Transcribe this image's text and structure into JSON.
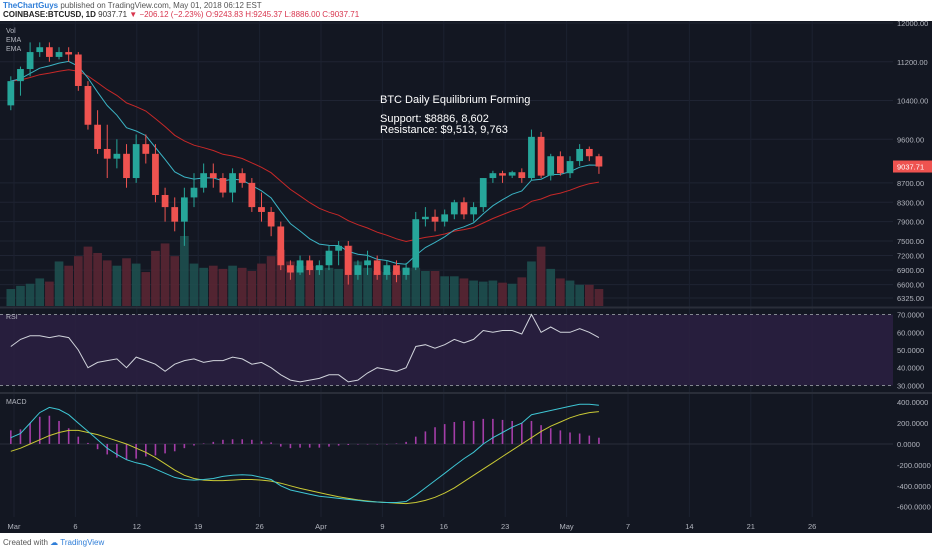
{
  "header": {
    "author": "TheChartGuys",
    "published_text": "published on TradingView.com, May 01, 2018 06:12 EST",
    "symbol": "COINBASE:BTCUSD, 1D",
    "last": "9037.71",
    "change": "▼ −206.12 (−2.23%)",
    "ohlc_line": "O:9243.83 H:9245.37 L:8886.00 C:9037.71"
  },
  "footer": {
    "created_with": "Created with",
    "brand": "TradingView"
  },
  "colors": {
    "background": "#131722",
    "up": "#26a69a",
    "down": "#ef5350",
    "ema_fast": "#3bb3c4",
    "ema_slow": "#c62828",
    "rsi_line": "#d1d4dc",
    "rsi_band": "#2b2042",
    "macd_line": "#3ec6d4",
    "signal_line": "#c9c935",
    "hist": "#a43da8",
    "last_price_tag": "#ef5350"
  },
  "chart_data": [
    {
      "type": "candlestick",
      "panel": "price",
      "legend": [
        "Vol",
        "EMA",
        "EMA"
      ],
      "annotation": {
        "title": "BTC Daily Equilibrium Forming",
        "line1": "Support: $8886, 8,602",
        "line2": "Resistance: $9,513, 9,763"
      },
      "last_price_label": "9037.71",
      "y_ticks": [
        "12000.00",
        "11200.00",
        "10400.00",
        "9600.00",
        "8700.00",
        "8300.00",
        "7900.00",
        "7500.00",
        "7200.00",
        "6900.00",
        "6600.00",
        "6325.00"
      ],
      "x_ticks": [
        "Mar",
        "6",
        "12",
        "19",
        "26",
        "Apr",
        "9",
        "16",
        "23",
        "May",
        "7",
        "14",
        "21",
        "26"
      ],
      "ohlc": [
        [
          10300,
          10900,
          10200,
          10800
        ],
        [
          10800,
          11100,
          10500,
          11050
        ],
        [
          11050,
          11600,
          10900,
          11400
        ],
        [
          11400,
          11600,
          11300,
          11500
        ],
        [
          11500,
          11600,
          11200,
          11300
        ],
        [
          11300,
          11500,
          11250,
          11400
        ],
        [
          11400,
          11500,
          11200,
          11350
        ],
        [
          11350,
          11400,
          10600,
          10700
        ],
        [
          10700,
          10800,
          9800,
          9900
        ],
        [
          9900,
          10200,
          9300,
          9400
        ],
        [
          9400,
          9900,
          8800,
          9200
        ],
        [
          9200,
          9600,
          9000,
          9300
        ],
        [
          9300,
          9500,
          8600,
          8800
        ],
        [
          8800,
          9700,
          8700,
          9500
        ],
        [
          9500,
          9700,
          9100,
          9300
        ],
        [
          9300,
          9500,
          8300,
          8450
        ],
        [
          8450,
          8600,
          7900,
          8200
        ],
        [
          8200,
          8400,
          7700,
          7900
        ],
        [
          7900,
          8600,
          7400,
          8400
        ],
        [
          8400,
          8900,
          8200,
          8600
        ],
        [
          8600,
          9100,
          8500,
          8900
        ],
        [
          8900,
          9100,
          8600,
          8800
        ],
        [
          8800,
          8900,
          8400,
          8500
        ],
        [
          8500,
          9000,
          8300,
          8900
        ],
        [
          8900,
          9000,
          8600,
          8700
        ],
        [
          8700,
          8800,
          8100,
          8200
        ],
        [
          8200,
          8500,
          7900,
          8100
        ],
        [
          8100,
          8200,
          7600,
          7800
        ],
        [
          7800,
          7900,
          6900,
          7000
        ],
        [
          7000,
          7100,
          6700,
          6850
        ],
        [
          6850,
          7200,
          6800,
          7100
        ],
        [
          7100,
          7200,
          6800,
          6900
        ],
        [
          6900,
          7100,
          6800,
          7000
        ],
        [
          7000,
          7400,
          6900,
          7300
        ],
        [
          7300,
          7500,
          7000,
          7400
        ],
        [
          7400,
          7500,
          6600,
          6800
        ],
        [
          6800,
          7100,
          6700,
          7000
        ],
        [
          7000,
          7300,
          6800,
          7100
        ],
        [
          7100,
          7200,
          6700,
          6800
        ],
        [
          6800,
          7100,
          6700,
          7000
        ],
        [
          7000,
          7100,
          6650,
          6800
        ],
        [
          6800,
          7050,
          6700,
          6950
        ],
        [
          6950,
          8100,
          6900,
          7950
        ],
        [
          7950,
          8200,
          7800,
          8000
        ],
        [
          8000,
          8150,
          7700,
          7900
        ],
        [
          7900,
          8150,
          7800,
          8050
        ],
        [
          8050,
          8350,
          7950,
          8300
        ],
        [
          8300,
          8400,
          7950,
          8050
        ],
        [
          8050,
          8300,
          7900,
          8200
        ],
        [
          8200,
          8800,
          8100,
          8800
        ],
        [
          8800,
          8950,
          8700,
          8900
        ],
        [
          8900,
          8950,
          8700,
          8850
        ],
        [
          8850,
          8950,
          8800,
          8920
        ],
        [
          8920,
          9000,
          8700,
          8800
        ],
        [
          8800,
          9800,
          8750,
          9650
        ],
        [
          9650,
          9750,
          8800,
          8850
        ],
        [
          8850,
          9300,
          8750,
          9250
        ],
        [
          9250,
          9350,
          8850,
          8900
        ],
        [
          8900,
          9250,
          8800,
          9150
        ],
        [
          9150,
          9500,
          9050,
          9400
        ],
        [
          9400,
          9450,
          9150,
          9250
        ],
        [
          9250,
          9300,
          8886,
          9037.71
        ]
      ],
      "volume": [
        160,
        190,
        210,
        260,
        230,
        420,
        380,
        470,
        560,
        500,
        430,
        380,
        450,
        400,
        320,
        520,
        590,
        470,
        660,
        400,
        360,
        380,
        350,
        380,
        360,
        330,
        400,
        470,
        530,
        420,
        380,
        380,
        380,
        360,
        350,
        570,
        420,
        360,
        330,
        320,
        330,
        360,
        360,
        330,
        330,
        280,
        280,
        260,
        240,
        230,
        240,
        220,
        210,
        270,
        420,
        560,
        350,
        260,
        240,
        200,
        200,
        160
      ],
      "volume_note": "relative heights read from the volume histogram"
    },
    {
      "type": "line",
      "panel": "rsi",
      "title": "RSI",
      "y_ticks": [
        "70.0000",
        "60.0000",
        "50.0000",
        "40.0000",
        "30.0000"
      ],
      "values": [
        52,
        56,
        58,
        58,
        57,
        58,
        57,
        50,
        40,
        43,
        44,
        45,
        40,
        46,
        44,
        42,
        38,
        42,
        44,
        45,
        43,
        44,
        44,
        46,
        45,
        42,
        43,
        40,
        36,
        33,
        32,
        33,
        34,
        36,
        36,
        32,
        33,
        37,
        40,
        39,
        38,
        40,
        52,
        53,
        51,
        53,
        56,
        54,
        56,
        61,
        60,
        61,
        61,
        59,
        70,
        60,
        63,
        60,
        60,
        62,
        60,
        57
      ],
      "upper_band": 70,
      "lower_band": 30
    },
    {
      "type": "line",
      "panel": "macd",
      "title": "MACD",
      "y_ticks": [
        "400.0000",
        "200.0000",
        "0.0000",
        "-200.0000",
        "-400.0000",
        "-600.0000"
      ],
      "macd": [
        60,
        100,
        200,
        300,
        350,
        330,
        280,
        200,
        120,
        40,
        -40,
        -100,
        -150,
        -180,
        -200,
        -240,
        -280,
        -320,
        -340,
        -345,
        -340,
        -330,
        -310,
        -300,
        -295,
        -300,
        -320,
        -340,
        -400,
        -440,
        -460,
        -480,
        -500,
        -510,
        -520,
        -530,
        -540,
        -550,
        -555,
        -560,
        -560,
        -550,
        -490,
        -420,
        -350,
        -280,
        -210,
        -140,
        -80,
        0,
        60,
        110,
        160,
        200,
        280,
        300,
        320,
        340,
        360,
        380,
        380,
        370
      ],
      "signal": [
        -70,
        -40,
        0,
        40,
        80,
        110,
        130,
        130,
        110,
        90,
        60,
        30,
        0,
        -40,
        -80,
        -130,
        -190,
        -250,
        -300,
        -330,
        -345,
        -350,
        -350,
        -345,
        -340,
        -340,
        -345,
        -355,
        -375,
        -400,
        -425,
        -445,
        -465,
        -485,
        -505,
        -520,
        -535,
        -545,
        -555,
        -560,
        -565,
        -570,
        -560,
        -540,
        -510,
        -470,
        -420,
        -360,
        -300,
        -240,
        -180,
        -120,
        -60,
        0,
        60,
        120,
        170,
        210,
        250,
        280,
        300,
        310
      ],
      "histogram": [
        130,
        140,
        200,
        260,
        270,
        220,
        150,
        70,
        10,
        -50,
        -100,
        -130,
        -150,
        -140,
        -120,
        -110,
        -90,
        -70,
        -40,
        -15,
        5,
        20,
        40,
        45,
        45,
        40,
        25,
        15,
        -25,
        -40,
        -35,
        -35,
        -35,
        -25,
        -15,
        -10,
        -5,
        -5,
        0,
        0,
        5,
        20,
        70,
        120,
        160,
        190,
        210,
        220,
        220,
        240,
        240,
        230,
        220,
        200,
        220,
        180,
        150,
        130,
        110,
        100,
        80,
        60
      ]
    }
  ]
}
